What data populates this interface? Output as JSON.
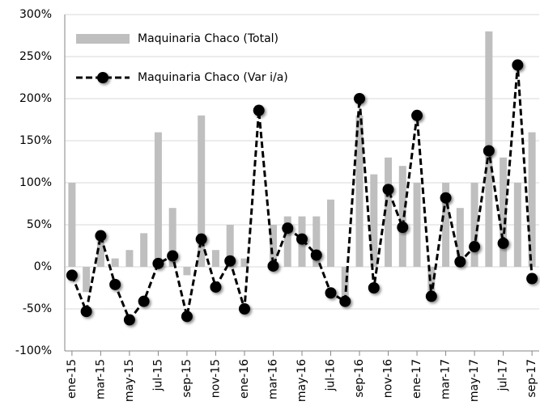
{
  "chart_data": {
    "type": "bar_line",
    "categories": [
      "ene-15",
      null,
      "mar-15",
      null,
      "may-15",
      null,
      "jul-15",
      null,
      "sep-15",
      null,
      "nov-15",
      null,
      "ene-16",
      null,
      "mar-16",
      null,
      "may-16",
      null,
      "jul-16",
      null,
      "sep-16",
      null,
      "nov-16",
      null,
      "ene-17",
      null,
      "mar-17",
      null,
      "may-17",
      null,
      "jul-17",
      null,
      "sep-17"
    ],
    "series": [
      {
        "name": "Maquinaria Chaco (Total)",
        "kind": "bar",
        "color": "#bfbfbf",
        "values": [
          100,
          -30,
          30,
          10,
          20,
          40,
          160,
          70,
          -10,
          180,
          20,
          50,
          10,
          0,
          50,
          60,
          60,
          60,
          80,
          -40,
          180,
          110,
          130,
          120,
          100,
          -30,
          100,
          70,
          100,
          280,
          130,
          100,
          160
        ]
      },
      {
        "name": "Maquinaria Chaco (Var i/a)",
        "kind": "line",
        "color": "#000000",
        "values": [
          -10,
          -53,
          37,
          -21,
          -63,
          -41,
          4,
          13,
          -59,
          33,
          -24,
          7,
          -50,
          186,
          1,
          46,
          33,
          14,
          -31,
          -41,
          200,
          -25,
          92,
          47,
          180,
          -35,
          82,
          6,
          24,
          138,
          28,
          240,
          -14
        ]
      }
    ],
    "ylim": [
      -100,
      300
    ],
    "yticks": [
      {
        "value": -100,
        "label": "-100%"
      },
      {
        "value": -50,
        "label": "-50%"
      },
      {
        "value": 0,
        "label": "0%"
      },
      {
        "value": 50,
        "label": "50%"
      },
      {
        "value": 100,
        "label": "100%"
      },
      {
        "value": 150,
        "label": "150%"
      },
      {
        "value": 200,
        "label": "200%"
      },
      {
        "value": 250,
        "label": "250%"
      },
      {
        "value": 300,
        "label": "300%"
      }
    ],
    "grid": true,
    "legend": "upper-left"
  }
}
